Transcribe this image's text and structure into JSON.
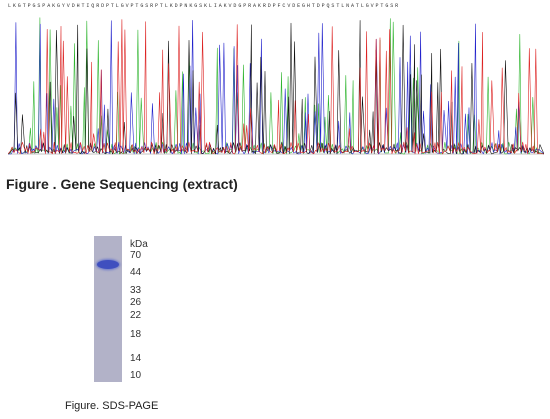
{
  "sequencing": {
    "sequence_strip": "LKGTPGSPAKGYVDHTIQRDPTLGVPTGSRPTLKDPNKGSKLIAKVDGPRAKRDPFCVDEGHTDPQSTLNATLGVPTGSR",
    "caption": "Figure . Gene Sequencing (extract)",
    "trace_colors": {
      "A": "#2fb52f",
      "C": "#2222cc",
      "G": "#111111",
      "T": "#dd2222"
    }
  },
  "sds_page": {
    "unit_label": "kDa",
    "markers": [
      "70",
      "44",
      "33",
      "26",
      "22",
      "18",
      "14",
      "10"
    ],
    "caption": "Figure. SDS-PAGE",
    "band_color": "#3f4fbf",
    "lane_color": "#b2b2c8"
  }
}
